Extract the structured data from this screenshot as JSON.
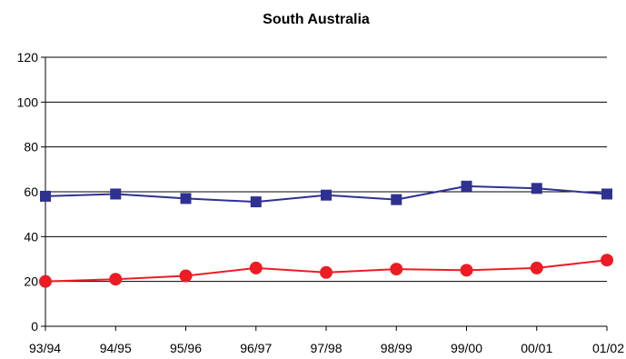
{
  "chart_data": {
    "type": "line",
    "title": "South Australia",
    "xlabel": "",
    "ylabel": "",
    "categories": [
      "93/94",
      "94/95",
      "95/96",
      "96/97",
      "97/98",
      "98/99",
      "99/00",
      "00/01",
      "01/02"
    ],
    "ylim": [
      0,
      120
    ],
    "yticks": [
      0,
      20,
      40,
      60,
      80,
      100,
      120
    ],
    "grid": "horizontal",
    "legend": "none",
    "series": [
      {
        "values": [
          58,
          59,
          57,
          55.5,
          58.5,
          56.5,
          62.5,
          61.5,
          59
        ],
        "color": "#2e3192",
        "marker": "square"
      },
      {
        "values": [
          20,
          21,
          22.5,
          26,
          24,
          25.5,
          25,
          26,
          29.5
        ],
        "color": "#ed1c24",
        "marker": "circle"
      }
    ]
  }
}
